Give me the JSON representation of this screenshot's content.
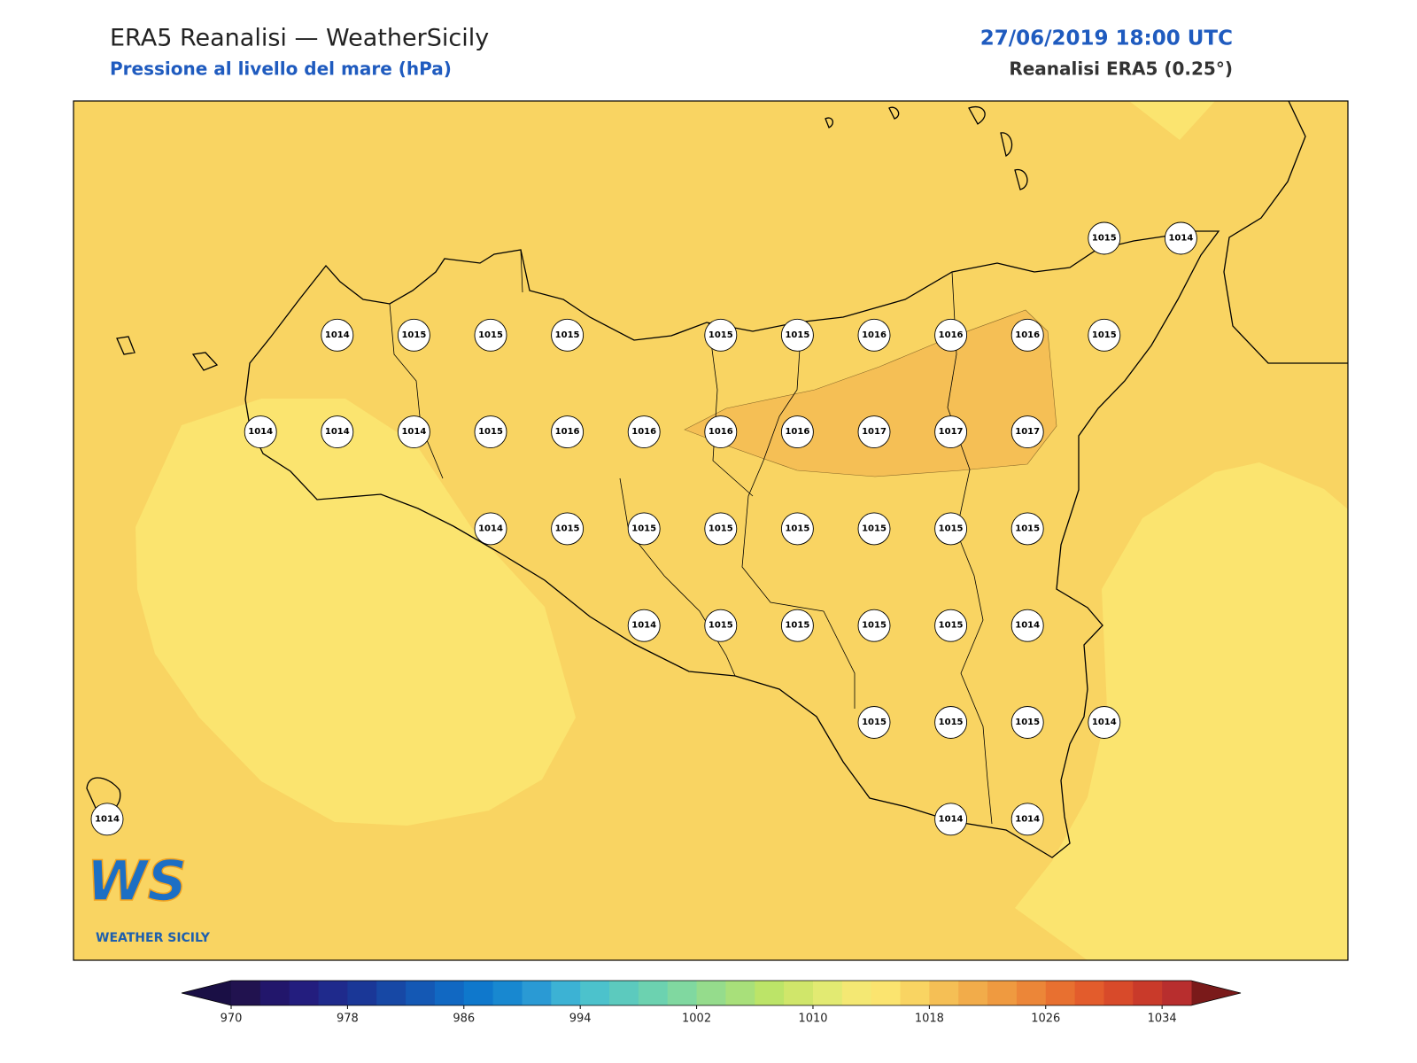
{
  "header": {
    "title": "ERA5 Reanalisi — WeatherSicily",
    "subtitle": "Pressione al livello del mare (hPa)",
    "datetime": "27/06/2019 18:00 UTC",
    "source": "Reanalisi ERA5 (0.25°)"
  },
  "stations": [
    [
      null,
      null,
      null,
      null,
      null,
      null,
      null,
      null,
      null,
      null,
      null,
      null,
      null,
      1015,
      1014
    ],
    [
      null,
      null,
      null,
      1014,
      1015,
      1015,
      1015,
      null,
      1015,
      1015,
      1016,
      1016,
      1016,
      1015,
      null
    ],
    [
      null,
      null,
      1014,
      1014,
      1014,
      1015,
      1016,
      1016,
      1016,
      1016,
      1017,
      1017,
      1017,
      null,
      null
    ],
    [
      null,
      null,
      null,
      null,
      null,
      1014,
      1015,
      1015,
      1015,
      1015,
      1015,
      1015,
      1015,
      null,
      null
    ],
    [
      null,
      null,
      null,
      null,
      null,
      null,
      null,
      1014,
      1015,
      1015,
      1015,
      1015,
      1014,
      null,
      null
    ],
    [
      null,
      null,
      null,
      null,
      null,
      null,
      null,
      null,
      null,
      null,
      1015,
      1015,
      1015,
      1014,
      null
    ],
    [
      1014,
      null,
      null,
      null,
      null,
      null,
      null,
      null,
      null,
      null,
      null,
      1014,
      1014,
      null,
      null
    ]
  ],
  "colorbar": {
    "lim": [
      970,
      1036
    ],
    "ticks": [
      970,
      978,
      986,
      994,
      1002,
      1010,
      1018,
      1026,
      1034
    ],
    "under": "#1a0f45",
    "over": "#7a1a1a",
    "colors": [
      "#21124f",
      "#22166b",
      "#231d7e",
      "#1f2a8c",
      "#1a3797",
      "#1748a5",
      "#1458b4",
      "#1168c2",
      "#0f78cc",
      "#1888d0",
      "#2a9ad4",
      "#3cb2d4",
      "#4cc2cc",
      "#5ccabe",
      "#6cd2b0",
      "#80d8a0",
      "#95dc8c",
      "#a8e07a",
      "#bce468",
      "#d0e66a",
      "#e2ea72",
      "#f4e873",
      "#fbe46f",
      "#f9d462",
      "#f5bf55",
      "#f2ac4a",
      "#ef9a40",
      "#ec8638",
      "#e87030",
      "#e35c2c",
      "#d84a2a",
      "#c93a2a",
      "#b82e2e"
    ]
  },
  "logo": {
    "mark": "WS",
    "name": "WEATHER SICILY"
  }
}
